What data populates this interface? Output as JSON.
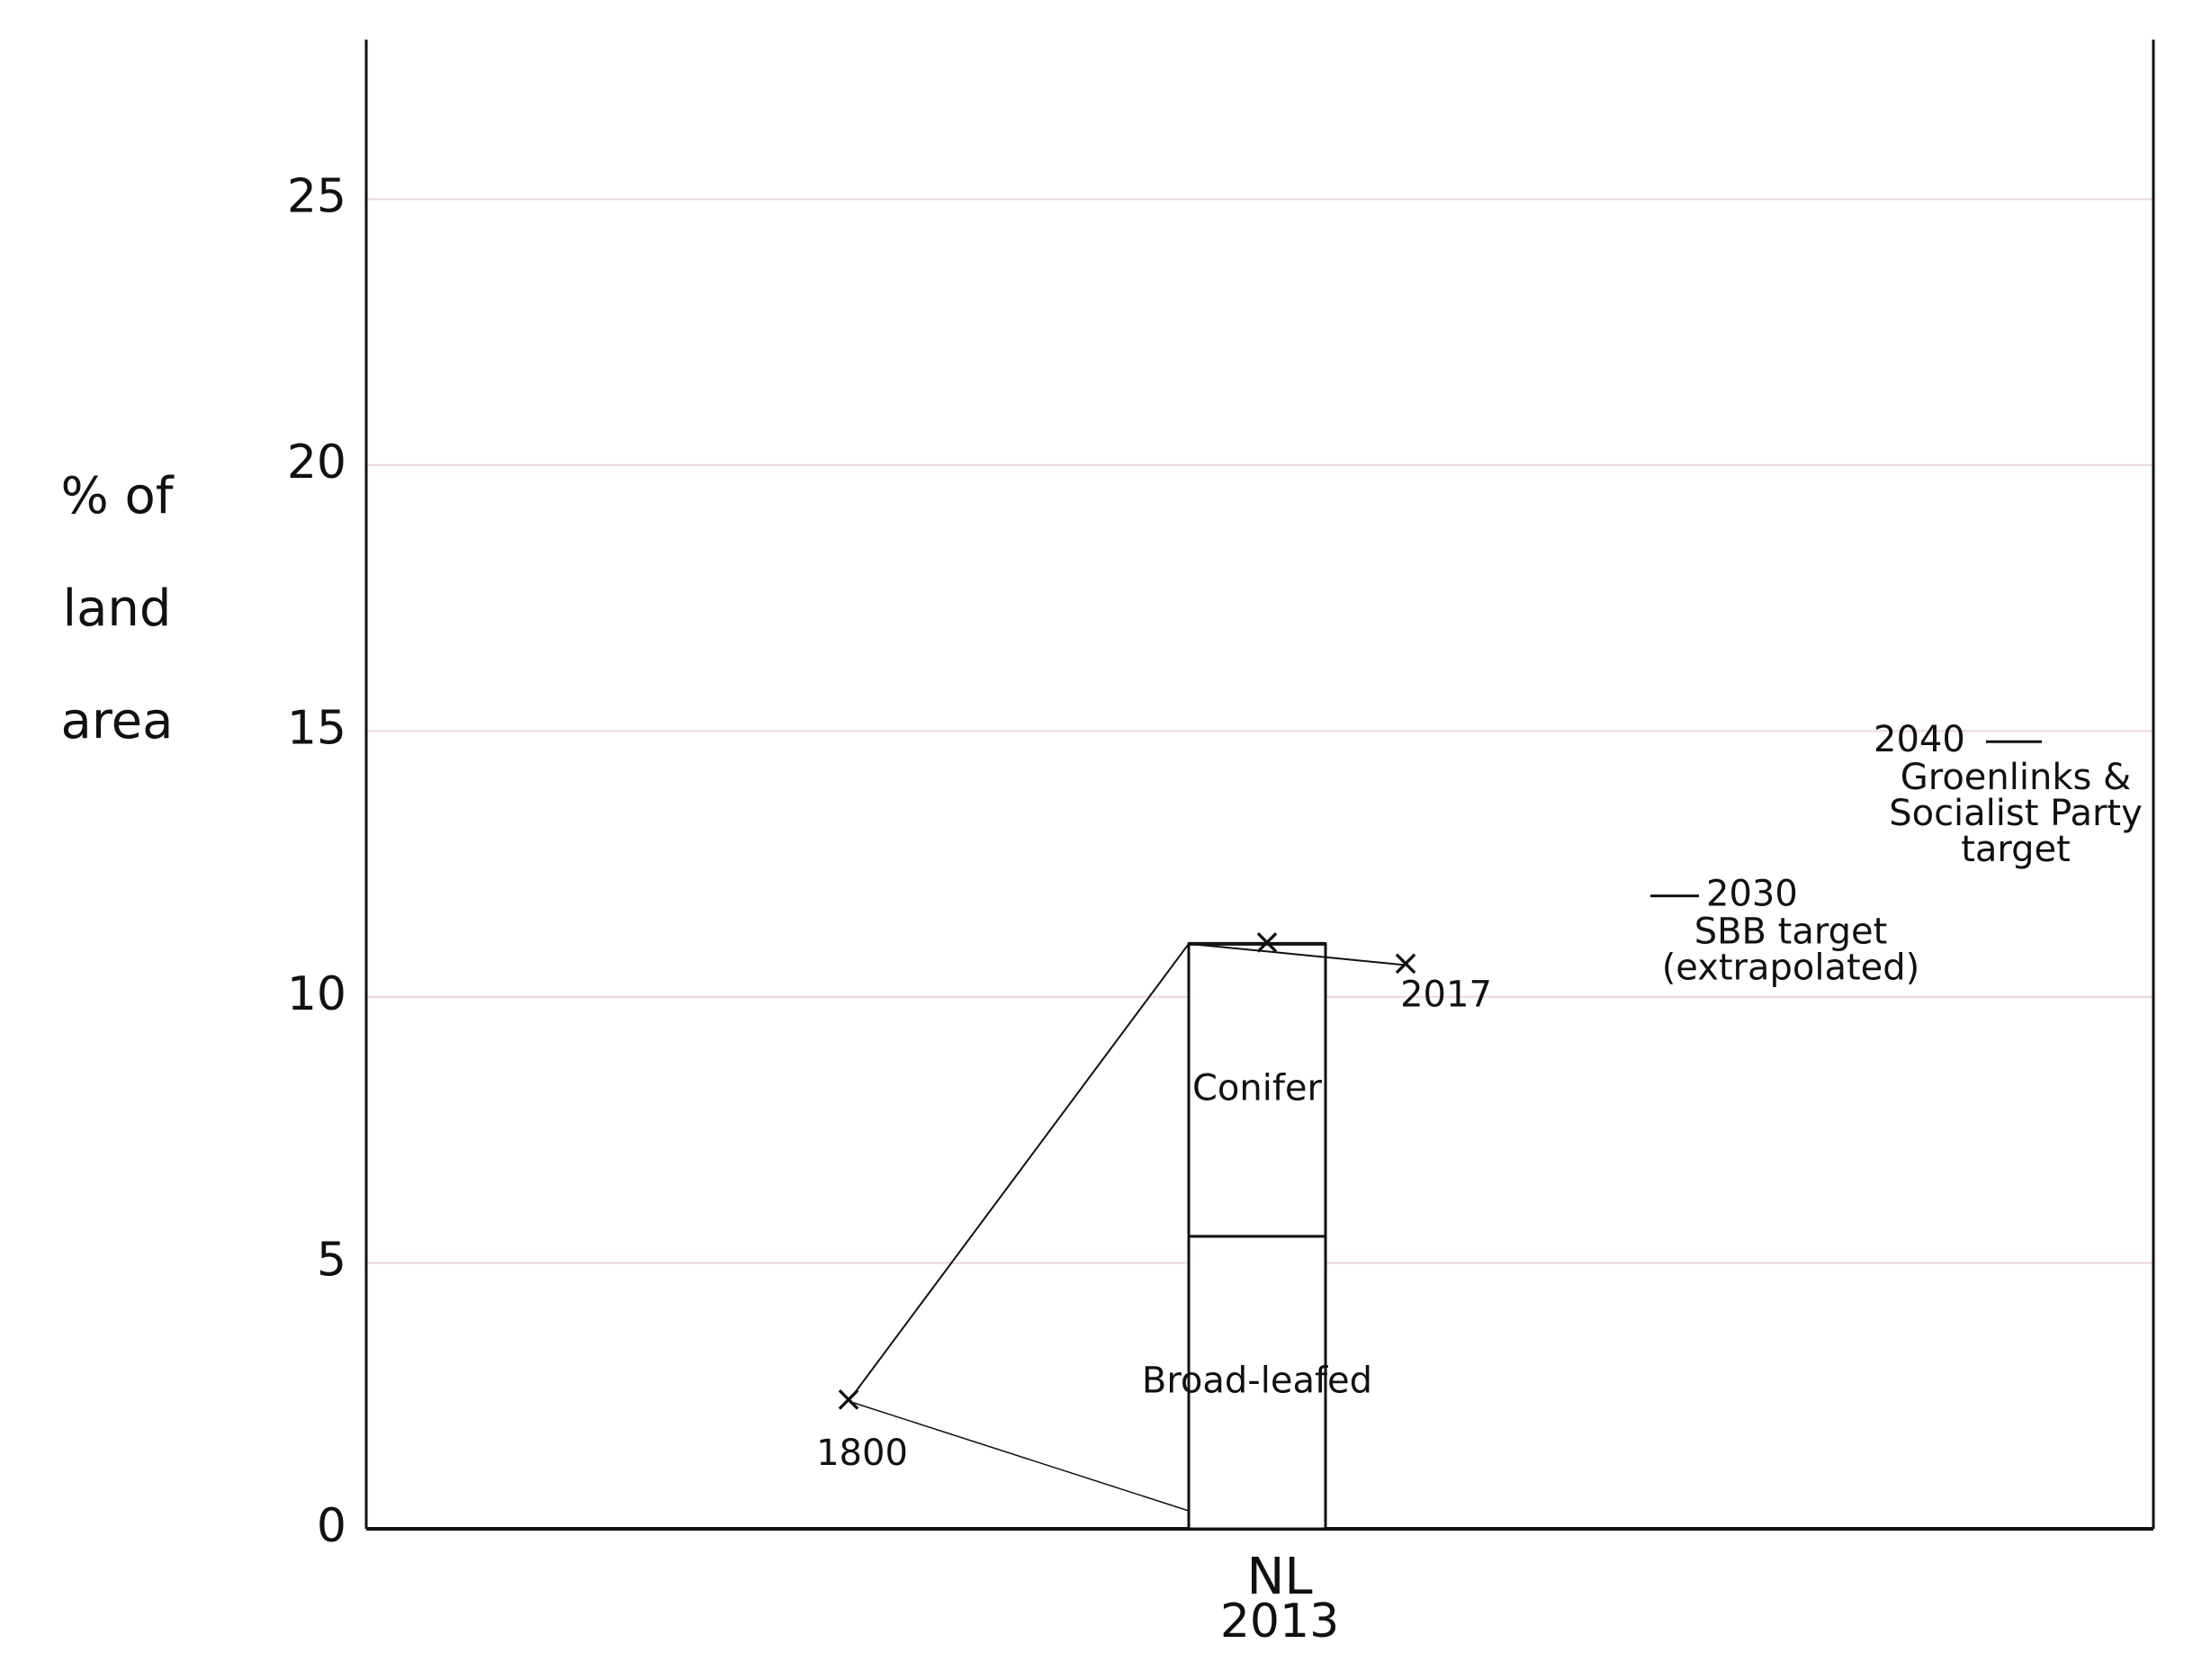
{
  "chart_data": {
    "type": "stacked-bar",
    "y_label_lines": [
      "% of",
      "land",
      "area"
    ],
    "categories": [
      "NL"
    ],
    "category_sublabel": "2013",
    "series": [
      {
        "name": "Broad-leafed",
        "color": "#ffffff",
        "values": [
          5.5
        ]
      },
      {
        "name": "Conifer",
        "color": "#ffffff",
        "values": [
          5.5
        ]
      }
    ],
    "markers": [
      {
        "label": "1800",
        "value": 2.4
      },
      {
        "label": "2017",
        "value": 10.6
      }
    ],
    "targets": [
      {
        "label": "2030",
        "note_lines": [
          "SBB target",
          "(extrapolated)"
        ],
        "value": 11.9
      },
      {
        "label": "2040",
        "note_lines": [
          "Groenlinks &",
          "Socialist Party",
          "target"
        ],
        "value": 14.8
      }
    ],
    "ylim": [
      0,
      28
    ],
    "yticks": [
      0,
      5,
      10,
      15,
      20,
      25
    ],
    "grid": true
  }
}
